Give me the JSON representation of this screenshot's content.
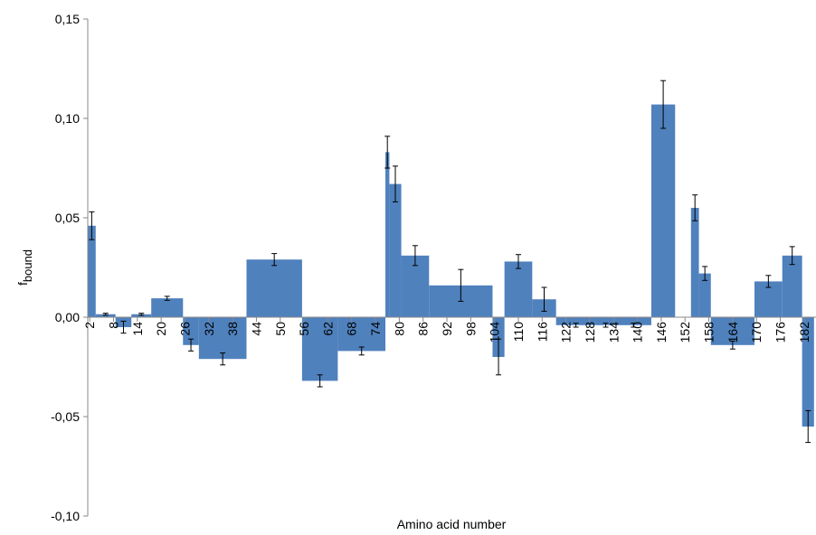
{
  "chart_data": {
    "type": "bar",
    "xlabel": "Amino acid number",
    "ylabel": {
      "main": "f",
      "sub": "bound"
    },
    "color": "#4f81bd",
    "x_start": [
      1.5,
      3.5,
      8.5,
      12.5,
      17.5,
      25.5,
      29.5,
      41.5,
      55.5,
      64.5,
      76.5,
      77.5,
      80.5,
      87.5,
      103.5,
      106.5,
      113.5,
      119.5,
      129.5,
      134.5,
      143.5,
      153.5,
      155.5,
      158.5,
      169.5,
      176.5,
      181.5
    ],
    "x_end": [
      3.5,
      8.5,
      12.5,
      17.5,
      25.5,
      29.5,
      41.5,
      55.5,
      64.5,
      76.5,
      77.5,
      80.5,
      87.5,
      103.5,
      106.5,
      113.5,
      119.5,
      129.5,
      134.5,
      143.5,
      149.5,
      155.5,
      158.5,
      169.5,
      176.5,
      181.5,
      184.5
    ],
    "values": [
      0.046,
      0.0015,
      -0.005,
      0.0015,
      0.0095,
      -0.014,
      -0.021,
      0.029,
      -0.032,
      -0.017,
      0.083,
      0.067,
      0.031,
      0.016,
      -0.02,
      0.028,
      0.009,
      -0.004,
      -0.004,
      -0.004,
      0.107,
      0.055,
      0.022,
      -0.014,
      0.018,
      0.031,
      -0.055
    ],
    "errors": [
      0.007,
      0.0005,
      0.003,
      0.0005,
      0.001,
      0.003,
      0.003,
      0.003,
      0.003,
      0.002,
      0.008,
      0.009,
      0.005,
      0.008,
      0.009,
      0.0035,
      0.006,
      0.001,
      0.001,
      0.001,
      0.012,
      0.0065,
      0.0035,
      0.002,
      0.003,
      0.0045,
      0.008
    ],
    "xlim": [
      1.5,
      185
    ],
    "xticks": [
      2,
      8,
      14,
      20,
      26,
      32,
      38,
      44,
      50,
      56,
      62,
      68,
      74,
      80,
      86,
      92,
      98,
      104,
      110,
      116,
      122,
      128,
      134,
      140,
      146,
      152,
      158,
      164,
      170,
      176,
      182
    ],
    "ylim": [
      -0.1,
      0.15
    ],
    "yticks": [
      {
        "value": -0.1,
        "label": "-0,10"
      },
      {
        "value": -0.05,
        "label": "-0,05"
      },
      {
        "value": 0,
        "label": "0,00"
      },
      {
        "value": 0.05,
        "label": "0,05"
      },
      {
        "value": 0.1,
        "label": "0,10"
      },
      {
        "value": 0.15,
        "label": "0,15"
      }
    ]
  }
}
